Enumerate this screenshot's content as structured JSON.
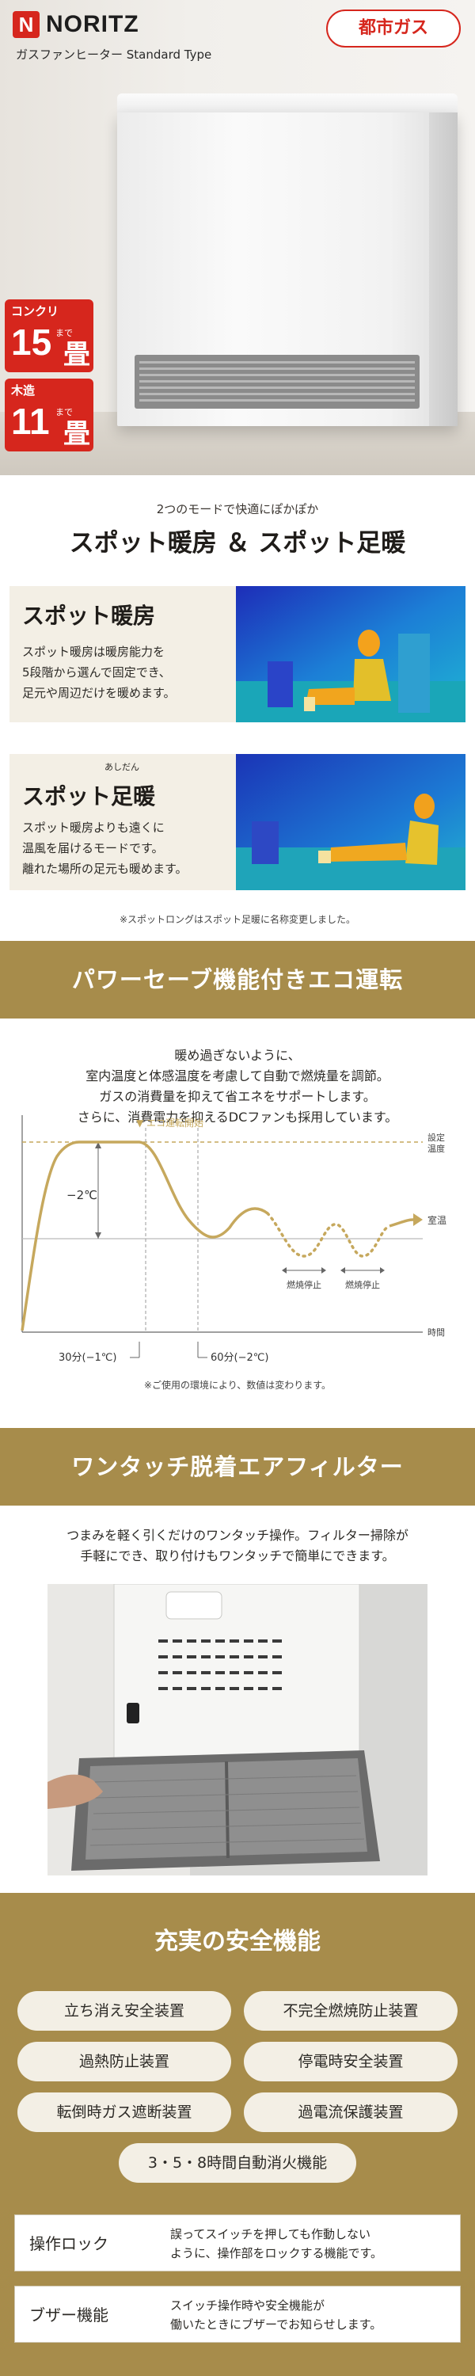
{
  "hero": {
    "brand": "NORITZ",
    "product_name": "ガスファンヒーター Standard Type",
    "gas_badge": "都市ガス",
    "badges": [
      {
        "type": "コンクリ",
        "num": "15",
        "made": "まで",
        "unit": "畳"
      },
      {
        "type": "木造",
        "num": "11",
        "made": "まで",
        "unit": "畳"
      }
    ]
  },
  "spot": {
    "subtitle": "2つのモードで快適にぽかぽか",
    "title": "スポット暖房 ＆ スポット足暖",
    "cards": [
      {
        "title": "スポット暖房",
        "desc": [
          "スポット暖房は暖房能力を",
          "5段階から選んで固定でき、",
          "足元や周辺だけを暖めます。"
        ]
      },
      {
        "title": "スポット足暖",
        "ruby": "あしだん",
        "desc": [
          "スポット暖房よりも遠くに",
          "温風を届けるモードです。",
          "離れた場所の足元も暖めます。"
        ]
      }
    ],
    "note": "※スポットロングはスポット足暖に名称変更しました。"
  },
  "eco": {
    "heading": "パワーセーブ機能付きエコ運転",
    "desc": [
      "暖め過ぎないように、",
      "室内温度と体感温度を考慮して自動で燃焼量を調節。",
      "ガスの消費量を抑えて省エネをサポートします。",
      "さらに、消費電力を抑えるDCファンも採用しています。"
    ],
    "graph": {
      "eco_start": "▼ エコ運転開始",
      "set_temp": [
        "設定",
        "温度"
      ],
      "room_temp": "室温",
      "time": "時間",
      "minus_temp": "−2℃",
      "stop1": "燃焼停止",
      "stop2": "燃焼停止",
      "t30": "30分(−1℃)",
      "t60": "60分(−2℃)"
    },
    "note": "※ご使用の環境により、数値は変わります。"
  },
  "filter": {
    "heading": "ワンタッチ脱着エアフィルター",
    "desc": [
      "つまみを軽く引くだけのワンタッチ操作。フィルター掃除が",
      "手軽にでき、取り付けもワンタッチで簡単にできます。"
    ]
  },
  "safety": {
    "title": "充実の安全機能",
    "items": [
      "立ち消え安全装置",
      "不完全燃焼防止装置",
      "過熱防止装置",
      "停電時安全装置",
      "転倒時ガス遮断装置",
      "過電流保護装置",
      "3・5・8時間自動消火機能"
    ],
    "features": [
      {
        "name": "操作ロック",
        "desc": [
          "誤ってスイッチを押しても作動しない",
          "ように、操作部をロックする機能です。"
        ]
      },
      {
        "name": "ブザー機能",
        "desc": [
          "スイッチ操作時や安全機能が",
          "働いたときにブザーでお知らせします。"
        ]
      }
    ]
  },
  "colors": {
    "brand_red": "#d6261d",
    "band_gold": "#a78c4b",
    "card_beige": "#f3efe5",
    "curve_gold": "#c6a85d"
  }
}
